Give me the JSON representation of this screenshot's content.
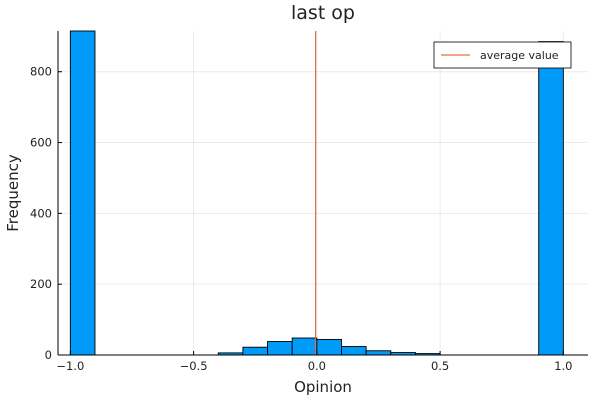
{
  "chart_data": {
    "type": "bar",
    "title": "last op",
    "xlabel": "Opinion",
    "ylabel": "Frequency",
    "xlim": [
      -1.05,
      1.1
    ],
    "ylim": [
      0,
      915
    ],
    "xticks": [
      -1.0,
      -0.5,
      0.0,
      0.5,
      1.0
    ],
    "xtick_labels": [
      "−1.0",
      "−0.5",
      "0.0",
      "0.5",
      "1.0"
    ],
    "yticks": [
      0,
      200,
      400,
      600,
      800
    ],
    "ytick_labels": [
      "0",
      "200",
      "400",
      "600",
      "800"
    ],
    "grid": true,
    "bins": [
      {
        "start": -1.0,
        "end": -0.9,
        "count": 915
      },
      {
        "start": -0.4,
        "end": -0.3,
        "count": 6
      },
      {
        "start": -0.3,
        "end": -0.2,
        "count": 22
      },
      {
        "start": -0.2,
        "end": -0.1,
        "count": 38
      },
      {
        "start": -0.1,
        "end": 0.0,
        "count": 48
      },
      {
        "start": 0.0,
        "end": 0.1,
        "count": 44
      },
      {
        "start": 0.1,
        "end": 0.2,
        "count": 24
      },
      {
        "start": 0.2,
        "end": 0.3,
        "count": 12
      },
      {
        "start": 0.3,
        "end": 0.4,
        "count": 7
      },
      {
        "start": 0.4,
        "end": 0.5,
        "count": 4
      },
      {
        "start": 0.9,
        "end": 1.0,
        "count": 885
      }
    ],
    "bar_color": "#009af9",
    "average_value": -0.005,
    "average_color": "#e26f46",
    "legend": {
      "label": "average value",
      "placement": "top-right"
    }
  }
}
